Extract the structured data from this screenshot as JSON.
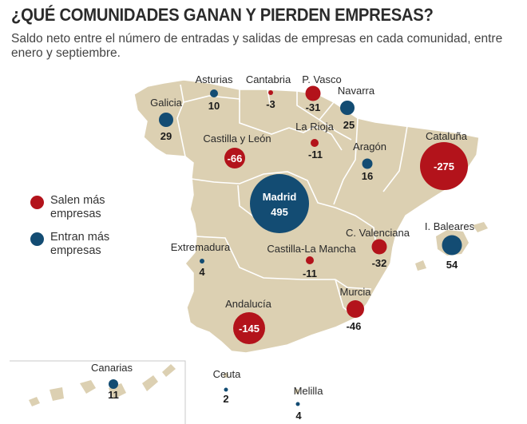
{
  "header": {
    "title": "¿QUÉ COMUNIDADES GANAN Y PIERDEN EMPRESAS?",
    "subtitle": "Saldo neto entre el número de entradas y salidas de empresas en cada comunidad, entre enero y septiembre."
  },
  "legend": {
    "negative": {
      "label": "Salen más empresas",
      "color": "#b3131b"
    },
    "positive": {
      "label": "Entran más empresas",
      "color": "#134c73"
    }
  },
  "colors": {
    "land": "#dcd0b2",
    "border": "#ffffff",
    "negative": "#b3131b",
    "positive": "#134c73"
  },
  "regions": [
    {
      "name": "Galicia",
      "value": "29"
    },
    {
      "name": "Asturias",
      "value": "10"
    },
    {
      "name": "Cantabria",
      "value": "-3"
    },
    {
      "name": "P. Vasco",
      "value": "-31"
    },
    {
      "name": "Navarra",
      "value": "25"
    },
    {
      "name": "La Rioja",
      "value": "-11"
    },
    {
      "name": "Castilla y León",
      "value": "-66"
    },
    {
      "name": "Aragón",
      "value": "16"
    },
    {
      "name": "Cataluña",
      "value": "-275"
    },
    {
      "name": "Madrid",
      "value": "495"
    },
    {
      "name": "I. Baleares",
      "value": "54"
    },
    {
      "name": "C. Valenciana",
      "value": "-32"
    },
    {
      "name": "Extremadura",
      "value": "4"
    },
    {
      "name": "Castilla-La Mancha",
      "value": "-11"
    },
    {
      "name": "Murcia",
      "value": "-46"
    },
    {
      "name": "Andalucía",
      "value": "-145"
    },
    {
      "name": "Canarias",
      "value": "11"
    },
    {
      "name": "Ceuta",
      "value": "2"
    },
    {
      "name": "Melilla",
      "value": "4"
    }
  ]
}
